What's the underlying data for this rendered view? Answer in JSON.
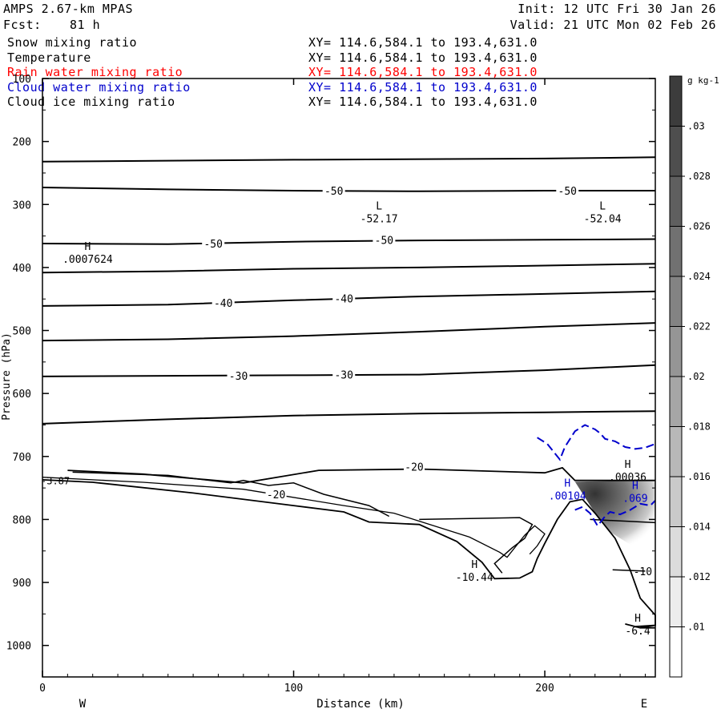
{
  "header": {
    "model": "AMPS 2.67-km MPAS",
    "fcst_label": "Fcst:",
    "fcst_hours": "81 h",
    "init": "Init: 12 UTC Fri 30 Jan 26",
    "valid": "Valid: 21 UTC Mon 02 Feb 26"
  },
  "fields": [
    {
      "name": "Snow mixing ratio",
      "range": "XY= 114.6,584.1 to 193.4,631.0",
      "color": "#000000"
    },
    {
      "name": "Temperature",
      "range": "XY= 114.6,584.1 to 193.4,631.0",
      "color": "#000000"
    },
    {
      "name": "Rain water mixing ratio",
      "range": "XY= 114.6,584.1 to 193.4,631.0",
      "color": "#ff0000"
    },
    {
      "name": "Cloud water mixing ratio",
      "range": "XY= 114.6,584.1 to 193.4,631.0",
      "color": "#0000cc"
    },
    {
      "name": "Cloud ice mixing ratio",
      "range": "XY= 114.6,584.1 to 193.4,631.0",
      "color": "#000000"
    }
  ],
  "chart_data": {
    "type": "cross-section contour",
    "xlabel": "Distance (km)",
    "ylabel": "Pressure (hPa)",
    "xlim": [
      0,
      244
    ],
    "ylim": [
      1050,
      100
    ],
    "x_ticks": [
      0,
      100,
      200
    ],
    "y_ticks": [
      100,
      200,
      300,
      400,
      500,
      600,
      700,
      800,
      900,
      1000
    ],
    "left_end": "W",
    "right_end": "E",
    "temperature_isotherms": [
      {
        "label": "",
        "points": [
          [
            0,
            232
          ],
          [
            100,
            229
          ],
          [
            200,
            227
          ],
          [
            244,
            225
          ]
        ]
      },
      {
        "label": "-50",
        "points": [
          [
            0,
            273
          ],
          [
            50,
            276
          ],
          [
            100,
            278
          ],
          [
            150,
            279
          ],
          [
            200,
            278
          ],
          [
            244,
            278
          ]
        ],
        "label_at": [
          [
            116,
            278
          ],
          [
            209,
            278
          ]
        ]
      },
      {
        "label": "-50",
        "points": [
          [
            0,
            362
          ],
          [
            50,
            363
          ],
          [
            100,
            359
          ],
          [
            150,
            357
          ],
          [
            200,
            356
          ],
          [
            244,
            355
          ]
        ],
        "label_at": [
          [
            68,
            362
          ],
          [
            136,
            356
          ]
        ]
      },
      {
        "label": "",
        "points": [
          [
            0,
            408
          ],
          [
            50,
            406
          ],
          [
            100,
            402
          ],
          [
            150,
            400
          ],
          [
            200,
            397
          ],
          [
            244,
            394
          ]
        ]
      },
      {
        "label": "-40",
        "points": [
          [
            0,
            461
          ],
          [
            50,
            459
          ],
          [
            100,
            452
          ],
          [
            150,
            446
          ],
          [
            200,
            442
          ],
          [
            244,
            438
          ]
        ],
        "label_at": [
          [
            72,
            456
          ],
          [
            120,
            449
          ]
        ]
      },
      {
        "label": "",
        "points": [
          [
            0,
            516
          ],
          [
            50,
            514
          ],
          [
            100,
            509
          ],
          [
            150,
            502
          ],
          [
            200,
            494
          ],
          [
            244,
            488
          ]
        ]
      },
      {
        "label": "-30",
        "points": [
          [
            0,
            573
          ],
          [
            50,
            572
          ],
          [
            100,
            571
          ],
          [
            150,
            570
          ],
          [
            200,
            563
          ],
          [
            244,
            555
          ]
        ],
        "label_at": [
          [
            78,
            572
          ],
          [
            120,
            570
          ]
        ]
      },
      {
        "label": "",
        "points": [
          [
            0,
            648
          ],
          [
            50,
            641
          ],
          [
            100,
            635
          ],
          [
            150,
            632
          ],
          [
            200,
            630
          ],
          [
            244,
            628
          ]
        ]
      }
    ],
    "ground_label_left": "-3.87",
    "isotherm_labels": [
      "-20",
      "-20",
      "-10"
    ],
    "extrema": [
      {
        "type": "L",
        "value": "-52.17",
        "x": 134,
        "p": 308
      },
      {
        "type": "L",
        "value": "-52.04",
        "x": 223,
        "p": 308
      },
      {
        "type": "H",
        "value": ".0007624",
        "x": 18,
        "p": 372
      },
      {
        "type": "H",
        "value": "-10.44",
        "x": 172,
        "p": 877
      },
      {
        "type": "H",
        "value": ".00104",
        "x": 209,
        "p": 748
      },
      {
        "type": "H",
        "value": ".00036",
        "x": 233,
        "p": 718
      },
      {
        "type": "H",
        "value": ".069",
        "x": 236,
        "p": 752
      },
      {
        "type": "H",
        "value": "-6.4",
        "x": 237,
        "p": 962
      }
    ],
    "colorbar": {
      "units": "g kg-1",
      "ticks": [
        ".03",
        ".028",
        ".026",
        ".024",
        ".022",
        ".02",
        ".018",
        ".016",
        ".014",
        ".012",
        ".01"
      ]
    }
  }
}
